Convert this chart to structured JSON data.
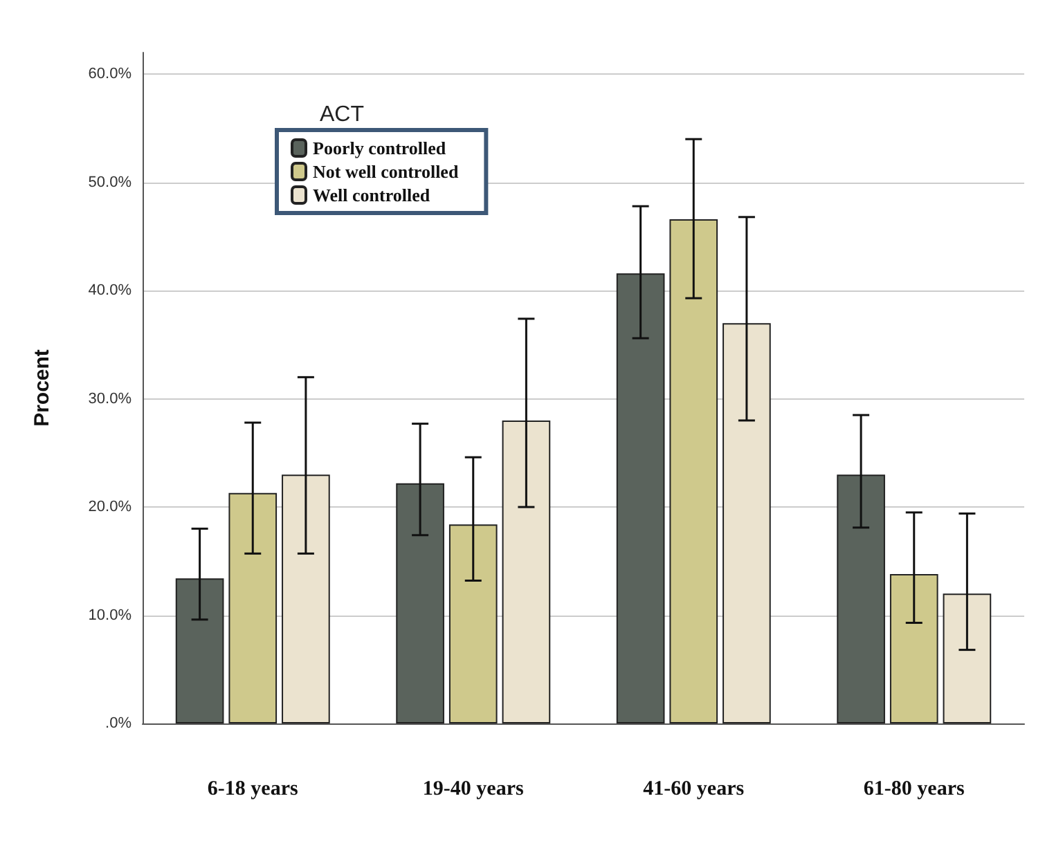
{
  "chart_data": {
    "type": "bar",
    "ylabel": "Procent",
    "legend_title": "ACT",
    "legend": "top left",
    "grid": "y",
    "categories": [
      "6-18 years",
      "19-40 years",
      "41-60 years",
      "61-80 years"
    ],
    "ylim": [
      0,
      62
    ],
    "yticks": [
      {
        "value": 0,
        "label": ".0%"
      },
      {
        "value": 10,
        "label": "10.0%"
      },
      {
        "value": 20,
        "label": "20.0%"
      },
      {
        "value": 30,
        "label": "30.0%"
      },
      {
        "value": 40,
        "label": "40.0%"
      },
      {
        "value": 50,
        "label": "50.0%"
      },
      {
        "value": 60,
        "label": "60.0%"
      }
    ],
    "series": [
      {
        "name": "Poorly controlled",
        "color": "#5a635c",
        "values": [
          13.4,
          22.2,
          41.6,
          23.0
        ],
        "errors": [
          [
            9.6,
            18.0
          ],
          [
            17.4,
            27.7
          ],
          [
            35.6,
            47.8
          ],
          [
            18.1,
            28.5
          ]
        ]
      },
      {
        "name": "Not well controlled",
        "color": "#cfc98c",
        "values": [
          21.3,
          18.4,
          46.6,
          13.8
        ],
        "errors": [
          [
            15.7,
            27.8
          ],
          [
            13.2,
            24.6
          ],
          [
            39.3,
            54.0
          ],
          [
            9.3,
            19.5
          ]
        ]
      },
      {
        "name": "Well controlled",
        "color": "#ebe3cf",
        "values": [
          23.0,
          28.0,
          37.0,
          12.0
        ],
        "errors": [
          [
            15.7,
            32.0
          ],
          [
            20.0,
            37.4
          ],
          [
            28.0,
            46.8
          ],
          [
            6.8,
            19.4
          ]
        ]
      }
    ]
  }
}
